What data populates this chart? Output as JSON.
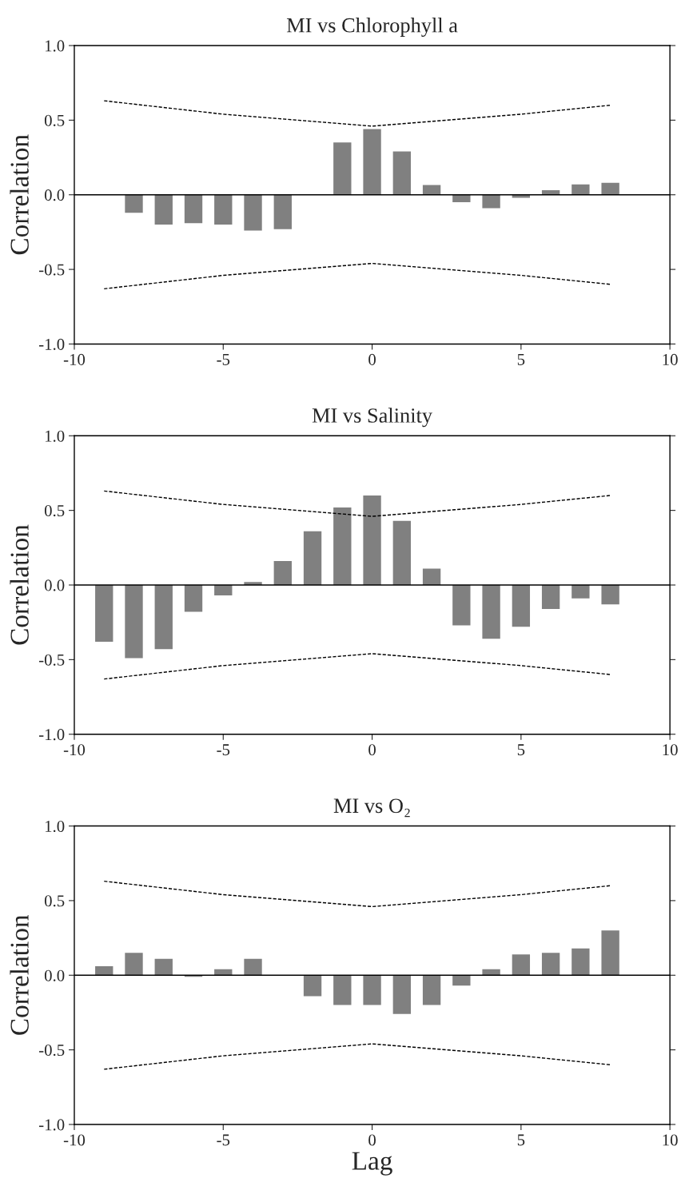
{
  "chart_data": [
    {
      "type": "bar",
      "title": "MI vs Chlorophyll a",
      "ylabel": "Correlation",
      "x": [
        -9,
        -8,
        -7,
        -6,
        -5,
        -4,
        -3,
        -2,
        -1,
        0,
        1,
        2,
        3,
        4,
        5,
        6,
        7,
        8
      ],
      "series": [
        {
          "color": "#808080",
          "values": [
            0,
            -0.12,
            -0.2,
            -0.19,
            -0.2,
            -0.24,
            -0.23,
            0,
            0.35,
            0.44,
            0.29,
            0.065,
            -0.05,
            -0.09,
            -0.02,
            0.03,
            0.07,
            0.08
          ]
        },
        {
          "type": "line",
          "color": "#000000",
          "line_style": "dashed",
          "marker": "none",
          "x": [
            -9,
            -5,
            0,
            5,
            8
          ],
          "values": [
            0.63,
            0.54,
            0.46,
            0.54,
            0.6
          ]
        },
        {
          "type": "line",
          "color": "#000000",
          "line_style": "dashed",
          "marker": "none",
          "x": [
            -9,
            -5,
            0,
            5,
            8
          ],
          "values": [
            -0.63,
            -0.54,
            -0.46,
            -0.54,
            -0.6
          ]
        }
      ],
      "ref_lines": [
        {
          "axis": "y",
          "value": 0,
          "color": "#000000"
        }
      ],
      "xlim": [
        -10,
        10
      ],
      "xticks": [
        -10,
        -5,
        0,
        5,
        10
      ],
      "ylim": [
        -1,
        1
      ],
      "yticks": [
        {
          "value": -1,
          "label": "-1.0"
        },
        {
          "value": -0.5,
          "label": "-0.5"
        },
        {
          "value": 0,
          "label": "0.0"
        },
        {
          "value": 0.5,
          "label": "0.5"
        },
        {
          "value": 1,
          "label": "1.0"
        }
      ],
      "grid": false,
      "legend": false
    },
    {
      "type": "bar",
      "title": "MI vs Salinity",
      "ylabel": "Correlation",
      "x": [
        -9,
        -8,
        -7,
        -6,
        -5,
        -4,
        -3,
        -2,
        -1,
        0,
        1,
        2,
        3,
        4,
        5,
        6,
        7,
        8
      ],
      "series": [
        {
          "color": "#808080",
          "values": [
            -0.38,
            -0.49,
            -0.43,
            -0.18,
            -0.07,
            0.02,
            0.16,
            0.36,
            0.52,
            0.6,
            0.43,
            0.11,
            -0.27,
            -0.36,
            -0.28,
            -0.16,
            -0.09,
            -0.13
          ]
        },
        {
          "type": "line",
          "color": "#000000",
          "line_style": "dashed",
          "marker": "none",
          "x": [
            -9,
            -5,
            0,
            5,
            8
          ],
          "values": [
            0.63,
            0.54,
            0.46,
            0.54,
            0.6
          ]
        },
        {
          "type": "line",
          "color": "#000000",
          "line_style": "dashed",
          "marker": "none",
          "x": [
            -9,
            -5,
            0,
            5,
            8
          ],
          "values": [
            -0.63,
            -0.54,
            -0.46,
            -0.54,
            -0.6
          ]
        }
      ],
      "ref_lines": [
        {
          "axis": "y",
          "value": 0,
          "color": "#000000"
        }
      ],
      "xlim": [
        -10,
        10
      ],
      "xticks": [
        -10,
        -5,
        0,
        5,
        10
      ],
      "ylim": [
        -1,
        1
      ],
      "yticks": [
        {
          "value": -1,
          "label": "-1.0"
        },
        {
          "value": -0.5,
          "label": "-0.5"
        },
        {
          "value": 0,
          "label": "0.0"
        },
        {
          "value": 0.5,
          "label": "0.5"
        },
        {
          "value": 1,
          "label": "1.0"
        }
      ],
      "grid": false,
      "legend": false
    },
    {
      "type": "bar",
      "title": "MI vs O₂",
      "ylabel": "Correlation",
      "xlabel": "Lag",
      "x": [
        -9,
        -8,
        -7,
        -6,
        -5,
        -4,
        -3,
        -2,
        -1,
        0,
        1,
        2,
        3,
        4,
        5,
        6,
        7,
        8
      ],
      "series": [
        {
          "color": "#808080",
          "values": [
            0.06,
            0.15,
            0.11,
            -0.01,
            0.04,
            0.11,
            0,
            -0.14,
            -0.2,
            -0.2,
            -0.26,
            -0.2,
            -0.07,
            0.04,
            0.14,
            0.15,
            0.18,
            0.3
          ]
        },
        {
          "type": "line",
          "color": "#000000",
          "line_style": "dashed",
          "marker": "none",
          "x": [
            -9,
            -5,
            0,
            5,
            8
          ],
          "values": [
            0.63,
            0.54,
            0.46,
            0.54,
            0.6
          ]
        },
        {
          "type": "line",
          "color": "#000000",
          "line_style": "dashed",
          "marker": "none",
          "x": [
            -9,
            -5,
            0,
            5,
            8
          ],
          "values": [
            -0.63,
            -0.54,
            -0.46,
            -0.54,
            -0.6
          ]
        }
      ],
      "ref_lines": [
        {
          "axis": "y",
          "value": 0,
          "color": "#000000"
        }
      ],
      "xlim": [
        -10,
        10
      ],
      "xticks": [
        -10,
        -5,
        0,
        5,
        10
      ],
      "ylim": [
        -1,
        1
      ],
      "yticks": [
        {
          "value": -1,
          "label": "-1.0"
        },
        {
          "value": -0.5,
          "label": "-0.5"
        },
        {
          "value": 0,
          "label": "0.0"
        },
        {
          "value": 0.5,
          "label": "0.5"
        },
        {
          "value": 1,
          "label": "1.0"
        }
      ],
      "grid": false,
      "legend": false
    }
  ]
}
